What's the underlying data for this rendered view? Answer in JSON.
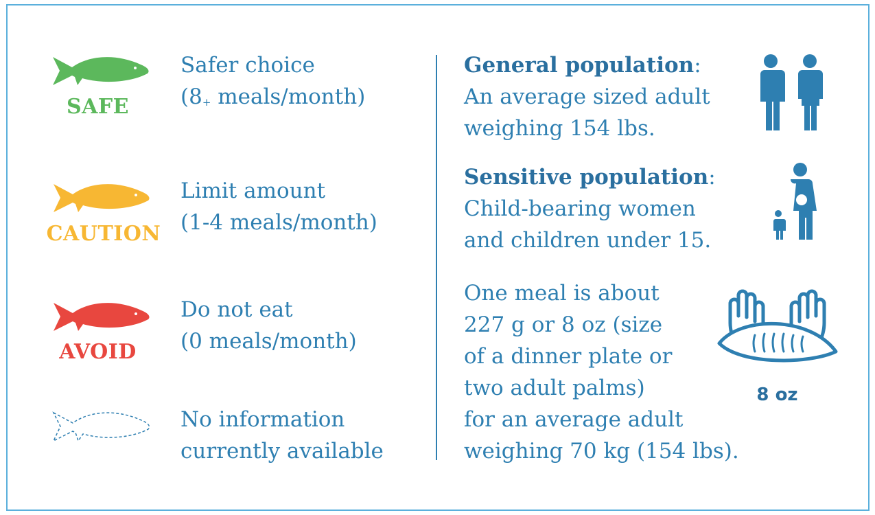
{
  "colors": {
    "safe": "#5cb85c",
    "caution": "#f7b733",
    "avoid": "#e8473f",
    "text": "#2e7fb1",
    "heading": "#2a6f9f",
    "icon": "#2e7fb1",
    "border": "#5bb0dc"
  },
  "legend": [
    {
      "icon": "fish-icon",
      "label": "SAFE",
      "line1": "Safer choice",
      "line2_pre": "(8",
      "line2_sup": "+",
      "line2_post": " meals/month)"
    },
    {
      "icon": "fish-icon",
      "label": "CAUTION",
      "line1": "Limit amount",
      "line2": "(1-4 meals/month)"
    },
    {
      "icon": "fish-icon",
      "label": "AVOID",
      "line1": "Do not eat",
      "line2": "(0 meals/month)"
    },
    {
      "icon": "dashed-fish-icon",
      "line1": "No information",
      "line2": "currently available"
    }
  ],
  "general": {
    "title": "General population",
    "colon": ":",
    "line1": "An average sized adult",
    "line2": "weighing 154 lbs.",
    "icon": "adult-couple-icon"
  },
  "sensitive": {
    "title": "Sensitive population",
    "colon": ":",
    "line1": "Child-bearing women",
    "line2": "and children under 15.",
    "icon": "pregnant-woman-child-icon"
  },
  "meal": {
    "lines": [
      "One meal is about",
      "227 g or 8 oz (size",
      "of a dinner plate or",
      "two adult palms)",
      "for an average adult",
      "weighing 70 kg (154 lbs)."
    ],
    "icon": "palms-fish-fillet-icon",
    "icon_label": "8 oz"
  }
}
